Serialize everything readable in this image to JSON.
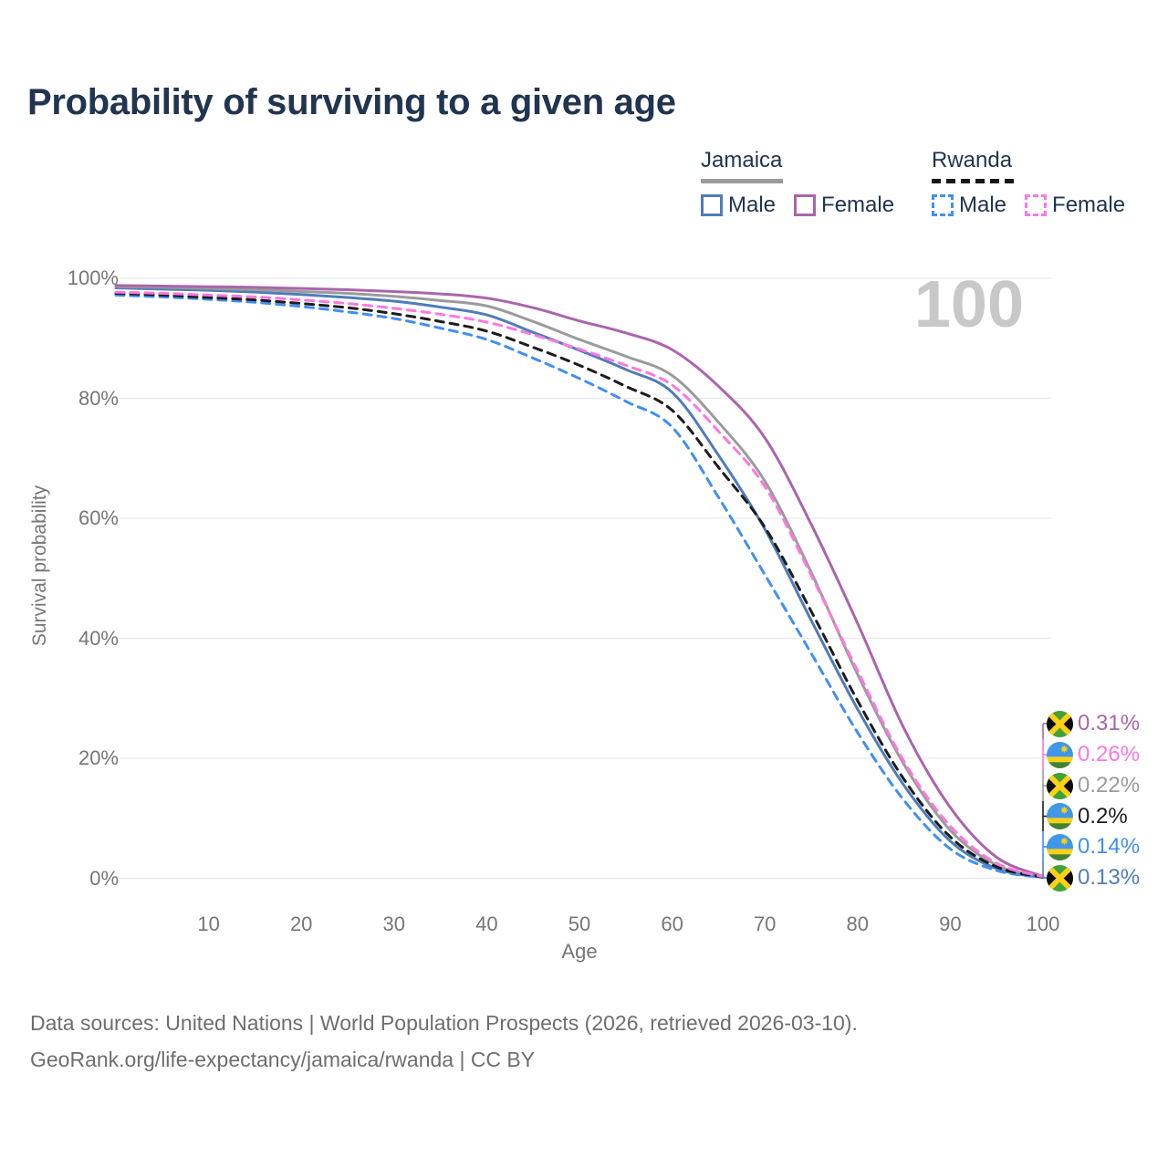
{
  "title": "Probability of surviving to a given age",
  "watermark": "100",
  "legend": {
    "groups": [
      {
        "country": "Jamaica",
        "line_style": "solid",
        "underline_color": "#9b9b9b",
        "items": [
          {
            "label": "Male",
            "color": "#4f7cba"
          },
          {
            "label": "Female",
            "color": "#ab64ab"
          }
        ]
      },
      {
        "country": "Rwanda",
        "line_style": "dashed",
        "underline_color": "#161616",
        "items": [
          {
            "label": "Male",
            "color": "#418ef5"
          },
          {
            "label": "Female",
            "color": "#ff77e1"
          }
        ]
      }
    ]
  },
  "axes": {
    "y_title": "Survival probability",
    "x_title": "Age",
    "y_ticks": [
      "100%",
      "80%",
      "60%",
      "40%",
      "20%",
      "0%"
    ],
    "x_ticks": [
      "10",
      "20",
      "30",
      "40",
      "50",
      "60",
      "70",
      "80",
      "90",
      "100"
    ]
  },
  "chart_data": {
    "type": "line",
    "title": "Probability of surviving to a given age",
    "xlabel": "Age",
    "ylabel": "Survival probability",
    "xlim": [
      0,
      100
    ],
    "ylim": [
      0,
      100
    ],
    "grid": "horizontal",
    "legend_position": "top-right",
    "x": [
      0,
      5,
      10,
      15,
      20,
      25,
      30,
      35,
      40,
      45,
      50,
      55,
      60,
      65,
      70,
      75,
      80,
      85,
      90,
      95,
      100
    ],
    "series": [
      {
        "name": "Jamaica — Female",
        "country": "jamaica",
        "sex": "Female",
        "color": "#ab64ab",
        "dash": false,
        "end_label": "0.31%",
        "values": [
          98.8,
          98.7,
          98.6,
          98.5,
          98.3,
          98.1,
          97.8,
          97.4,
          96.7,
          95.1,
          92.9,
          90.9,
          88.1,
          82.0,
          73.4,
          59.0,
          42.5,
          25.0,
          11.8,
          3.5,
          0.31
        ]
      },
      {
        "name": "Rwanda — Female",
        "country": "rwanda",
        "sex": "Female",
        "color": "#ff77e1",
        "dash": true,
        "end_label": "0.26%",
        "values": [
          97.7,
          97.5,
          97.2,
          96.9,
          96.4,
          95.8,
          95.0,
          94.0,
          92.7,
          90.6,
          88.2,
          85.5,
          82.2,
          74.5,
          65.3,
          50.5,
          34.6,
          19.5,
          8.7,
          2.5,
          0.26
        ]
      },
      {
        "name": "Jamaica — Both sexes",
        "country": "jamaica",
        "sex": "Both",
        "color": "#9b9b9b",
        "dash": false,
        "end_label": "0.22%",
        "values": [
          98.6,
          98.5,
          98.3,
          98.1,
          97.8,
          97.5,
          97.0,
          96.3,
          95.4,
          92.8,
          89.8,
          87.0,
          83.8,
          76.0,
          66.2,
          51.0,
          34.0,
          19.0,
          8.0,
          2.2,
          0.22
        ]
      },
      {
        "name": "Rwanda — Both sexes",
        "country": "rwanda",
        "sex": "Both",
        "color": "#1c1c1c",
        "dash": true,
        "end_label": "0.2%",
        "values": [
          97.5,
          97.2,
          96.8,
          96.4,
          95.8,
          95.1,
          94.1,
          92.8,
          91.2,
          88.5,
          85.5,
          82.0,
          78.0,
          68.5,
          58.5,
          44.5,
          29.6,
          16.5,
          6.9,
          1.9,
          0.2
        ]
      },
      {
        "name": "Rwanda — Male",
        "country": "rwanda",
        "sex": "Male",
        "color": "#418ef5",
        "dash": true,
        "end_label": "0.14%",
        "values": [
          97.2,
          96.9,
          96.5,
          96.0,
          95.3,
          94.4,
          93.3,
          91.7,
          89.8,
          86.7,
          83.3,
          79.5,
          75.2,
          63.5,
          50.6,
          37.5,
          24.3,
          13.0,
          4.9,
          1.3,
          0.14
        ]
      },
      {
        "name": "Jamaica — Male",
        "country": "jamaica",
        "sex": "Male",
        "color": "#4f7cba",
        "dash": false,
        "end_label": "0.13%",
        "values": [
          98.4,
          98.2,
          98.0,
          97.7,
          97.3,
          96.8,
          96.2,
          95.2,
          93.9,
          91.0,
          88.0,
          84.8,
          81.0,
          70.5,
          58.2,
          43.0,
          28.2,
          15.5,
          6.2,
          1.6,
          0.13
        ]
      }
    ]
  },
  "footer": {
    "line1": "Data sources: United Nations | World Population Prospects (2026, retrieved 2026-03-10).",
    "line2": "GeoRank.org/life-expectancy/jamaica/rwanda | CC BY"
  }
}
